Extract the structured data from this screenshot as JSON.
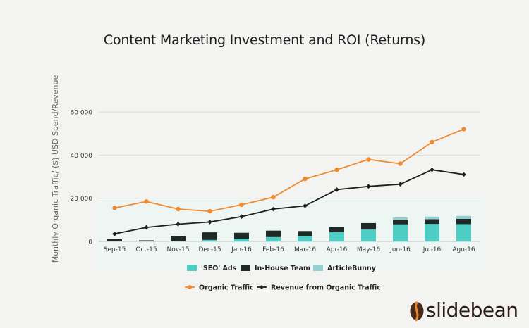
{
  "chart_data": {
    "type": "bar+line",
    "title": "Content Marketing Investment and ROI (Returns)",
    "ylabel": "Monthly Organic Traffic/ ($) USD Spend/Revenue",
    "xlabel": "",
    "ylim": [
      0,
      60000
    ],
    "yticks": [
      0,
      20000,
      40000,
      60000
    ],
    "ytick_labels": [
      "0",
      "20 000",
      "40 000",
      "60 000"
    ],
    "grid": true,
    "categories": [
      "Sep-15",
      "Oct-15",
      "Nov-15",
      "Dec-15",
      "Jan-16",
      "Feb-16",
      "Mar-16",
      "Apr-16",
      "May-16",
      "Jun-16",
      "Jul-16",
      "Ago-16"
    ],
    "bar_series": [
      {
        "name": "'SEO' Ads",
        "color": "#4ecdc4",
        "values": [
          0,
          0,
          0,
          700,
          1300,
          2000,
          2500,
          4300,
          5500,
          7900,
          8100,
          8000
        ]
      },
      {
        "name": "In-House Team",
        "color": "#1f2a28",
        "values": [
          1000,
          500,
          2500,
          3500,
          2700,
          3000,
          2300,
          2400,
          3000,
          2200,
          2200,
          2500
        ]
      },
      {
        "name": "ArticleBunny",
        "color": "#94cfcf",
        "values": [
          0,
          0,
          0,
          0,
          0,
          0,
          0,
          0,
          0,
          1000,
          1200,
          1300
        ]
      }
    ],
    "line_series": [
      {
        "name": "Organic Traffic",
        "color": "#ef8a2f",
        "marker": "circle",
        "values": [
          15500,
          18500,
          15000,
          14000,
          17000,
          20500,
          29000,
          33200,
          38000,
          36000,
          46000,
          52000
        ]
      },
      {
        "name": "Revenue from Organic Traffic",
        "color": "#1e1e1e",
        "marker": "diamond",
        "values": [
          3500,
          6500,
          8000,
          9000,
          11500,
          15000,
          16500,
          24000,
          25500,
          26500,
          33200,
          31000
        ]
      }
    ],
    "legend_position": "bottom"
  },
  "brand": {
    "name": "slidebean",
    "logo_colors": [
      "#e9872e",
      "#4a2a1a"
    ]
  }
}
